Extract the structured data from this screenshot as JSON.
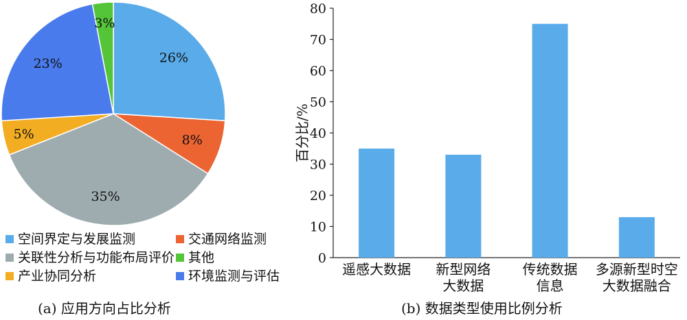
{
  "chart_data": [
    {
      "type": "pie",
      "caption": "(a) 应用方向占比分析",
      "slices": [
        {
          "name": "空间界定与发展监测",
          "value": 26,
          "label": "26%",
          "color": "#5aabea"
        },
        {
          "name": "交通网络监测",
          "value": 8,
          "label": "8%",
          "color": "#eb6432"
        },
        {
          "name": "关联性分析与功能布局评价",
          "value": 35,
          "label": "35%",
          "color": "#9eabaf"
        },
        {
          "name": "产业协同分析",
          "value": 5,
          "label": "5%",
          "color": "#f3ad23"
        },
        {
          "name": "环境监测与评估",
          "value": 23,
          "label": "23%",
          "color": "#4a7bec"
        },
        {
          "name": "其他",
          "value": 3,
          "label": "3%",
          "color": "#54c438"
        }
      ],
      "legend": [
        {
          "name": "空间界定与发展监测",
          "color": "#5aabea"
        },
        {
          "name": "交通网络监测",
          "color": "#eb6432"
        },
        {
          "name": "关联性分析与功能布局评价",
          "color": "#9eabaf"
        },
        {
          "name": "其他",
          "color": "#54c438"
        },
        {
          "name": "产业协同分析",
          "color": "#f3ad23"
        },
        {
          "name": "环境监测与评估",
          "color": "#4a7bec"
        }
      ],
      "legend_placement": "bottom"
    },
    {
      "type": "bar",
      "caption": "(b) 数据类型使用比例分析",
      "ylabel": "百分比/%",
      "ylim": [
        0,
        80
      ],
      "yticks": [
        0,
        10,
        20,
        30,
        40,
        50,
        60,
        70,
        80
      ],
      "categories": [
        [
          "遥感大数据"
        ],
        [
          "新型网络",
          "大数据"
        ],
        [
          "传统数据",
          "信息"
        ],
        [
          "多源新型时空",
          "大数据融合"
        ]
      ],
      "values": [
        35,
        33,
        75,
        13
      ],
      "bar_color": "#5aabea",
      "grid": false
    }
  ]
}
